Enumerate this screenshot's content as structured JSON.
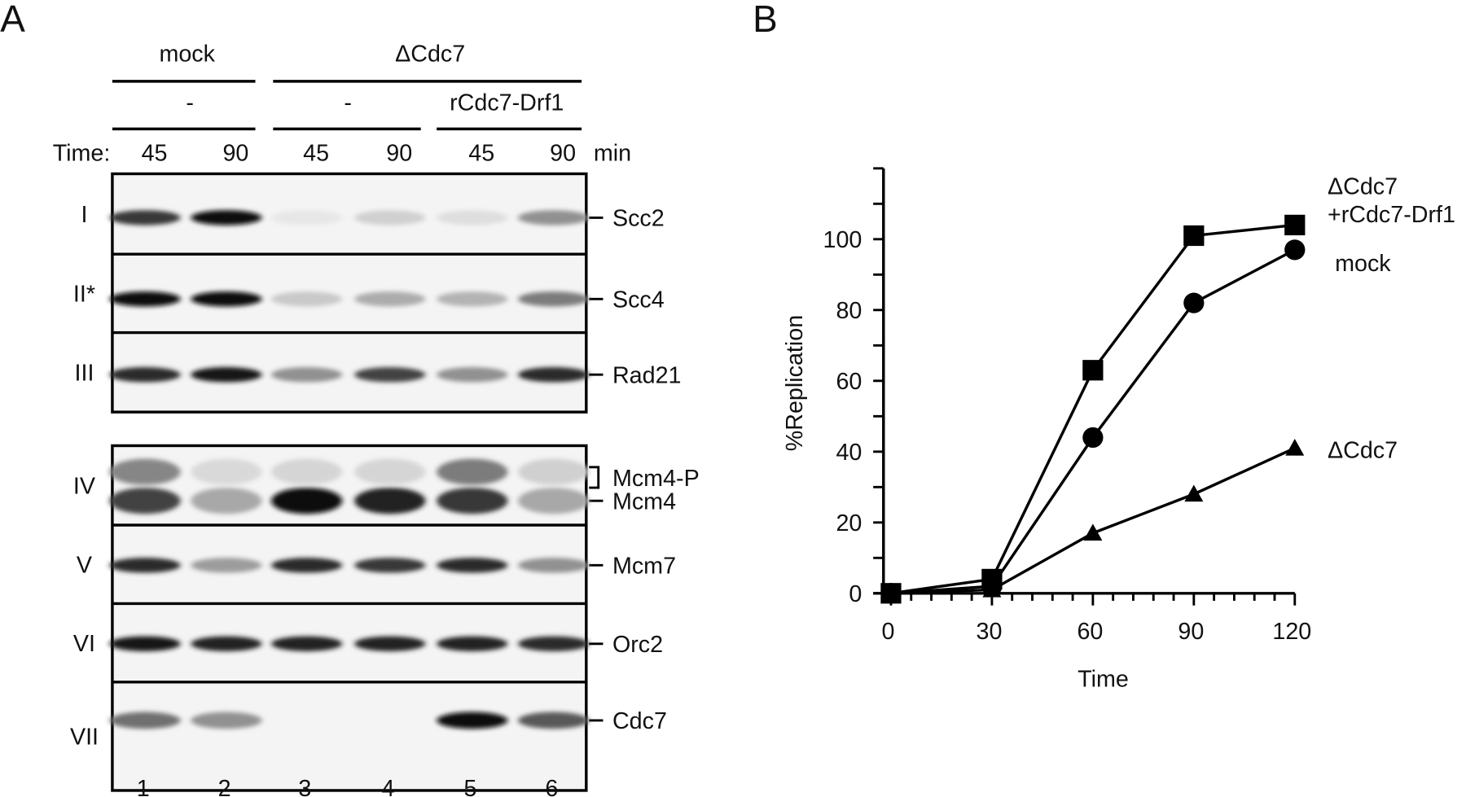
{
  "panel_a": {
    "label": "A",
    "header": {
      "group1": "mock",
      "group2": "ΔCdc7",
      "sub1": "-",
      "sub2": "-",
      "sub3": "rCdc7-Drf1",
      "time_label": "Time:",
      "times": [
        "45",
        "90",
        "45",
        "90",
        "45",
        "90"
      ],
      "time_unit": "min"
    },
    "lanes": [
      "1",
      "2",
      "3",
      "4",
      "5",
      "6"
    ],
    "rows": [
      {
        "roman": "I",
        "protein": "Scc2",
        "intensity": [
          0.8,
          1.0,
          0.02,
          0.12,
          0.06,
          0.4
        ]
      },
      {
        "roman": "II*",
        "protein": "Scc4",
        "intensity": [
          1.0,
          1.0,
          0.15,
          0.28,
          0.25,
          0.5
        ]
      },
      {
        "roman": "III",
        "protein": "Rad21",
        "intensity": [
          0.85,
          0.95,
          0.4,
          0.75,
          0.4,
          0.85
        ]
      },
      {
        "roman": "IV",
        "protein": "Mcm4",
        "protein_extra": "Mcm4-P",
        "intensity": [
          0.75,
          0.3,
          1.0,
          0.9,
          0.8,
          0.3
        ],
        "intensity_extra": [
          0.45,
          0.08,
          0.1,
          0.1,
          0.5,
          0.12
        ]
      },
      {
        "roman": "V",
        "protein": "Mcm7",
        "intensity": [
          0.85,
          0.35,
          0.85,
          0.8,
          0.85,
          0.4
        ]
      },
      {
        "roman": "VI",
        "protein": "Orc2",
        "intensity": [
          0.95,
          0.9,
          0.9,
          0.9,
          0.9,
          0.85
        ]
      },
      {
        "roman": "VII",
        "protein": "Cdc7",
        "intensity": [
          0.55,
          0.4,
          0.0,
          0.0,
          1.0,
          0.65
        ]
      }
    ]
  },
  "panel_b": {
    "label": "B"
  },
  "chart_data": {
    "type": "line",
    "title": "",
    "xlabel": "Time",
    "ylabel": "%Replication",
    "x": [
      0,
      30,
      60,
      90,
      120
    ],
    "xlim": [
      0,
      120
    ],
    "ylim": [
      0,
      120
    ],
    "xticks": [
      "0",
      "30",
      "60",
      "90",
      "120"
    ],
    "yticks": [
      "0",
      "20",
      "40",
      "60",
      "80",
      "100"
    ],
    "grid": false,
    "legend": "direct labels at right",
    "series": [
      {
        "name": "ΔCdc7 +rCdc7-Drf1",
        "label_lines": [
          "ΔCdc7",
          "+rCdc7-Drf1"
        ],
        "marker": "square",
        "values": [
          0,
          4,
          63,
          101,
          104
        ]
      },
      {
        "name": "mock",
        "label_lines": [
          "mock"
        ],
        "marker": "circle",
        "values": [
          0,
          2,
          44,
          82,
          97
        ]
      },
      {
        "name": "ΔCdc7",
        "label_lines": [
          "ΔCdc7"
        ],
        "marker": "triangle",
        "values": [
          0,
          1,
          17,
          28,
          41
        ]
      }
    ]
  }
}
